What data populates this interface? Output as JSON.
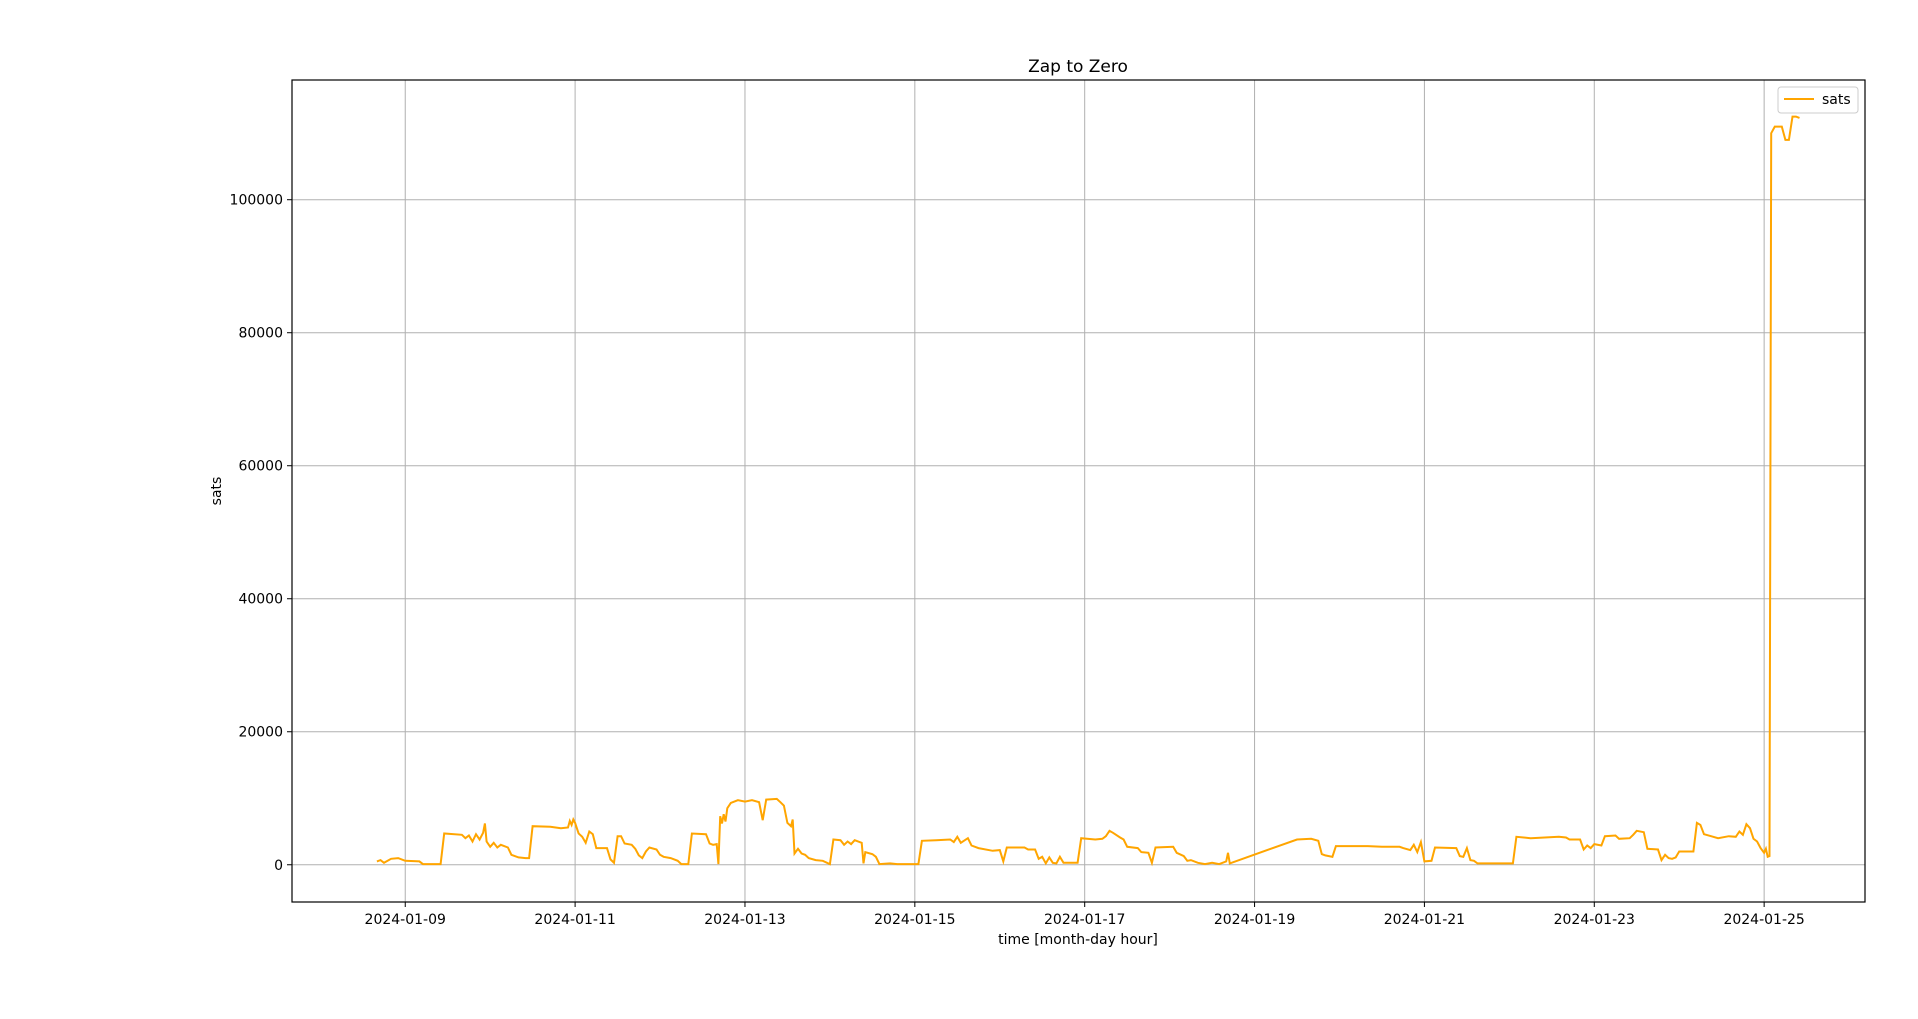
{
  "chart_data": {
    "type": "line",
    "title": "Zap to Zero",
    "xlabel": "time [month-day hour]",
    "ylabel": "sats",
    "x_ticks": [
      "2024-01-09",
      "2024-01-11",
      "2024-01-13",
      "2024-01-15",
      "2024-01-17",
      "2024-01-19",
      "2024-01-21",
      "2024-01-23",
      "2024-01-25"
    ],
    "y_ticks": [
      0,
      20000,
      40000,
      60000,
      80000,
      100000
    ],
    "xlim": [
      "2024-01-07T16:00",
      "2024-01-26T04:30"
    ],
    "ylim": [
      -5600,
      118000
    ],
    "grid": true,
    "legend_position": "top-right",
    "series": [
      {
        "name": "sats",
        "color": "#ffa500",
        "points": [
          [
            "2024-01-08T16:00",
            500
          ],
          [
            "2024-01-08T17:00",
            700
          ],
          [
            "2024-01-08T18:00",
            300
          ],
          [
            "2024-01-08T20:00",
            900
          ],
          [
            "2024-01-08T22:00",
            1000
          ],
          [
            "2024-01-09T00:00",
            600
          ],
          [
            "2024-01-09T04:00",
            500
          ],
          [
            "2024-01-09T05:00",
            100
          ],
          [
            "2024-01-09T10:00",
            100
          ],
          [
            "2024-01-09T11:00",
            4700
          ],
          [
            "2024-01-09T16:00",
            4500
          ],
          [
            "2024-01-09T17:00",
            4000
          ],
          [
            "2024-01-09T18:00",
            4400
          ],
          [
            "2024-01-09T19:00",
            3500
          ],
          [
            "2024-01-09T20:00",
            4600
          ],
          [
            "2024-01-09T21:00",
            3800
          ],
          [
            "2024-01-09T22:00",
            4800
          ],
          [
            "2024-01-09T22:30",
            6200
          ],
          [
            "2024-01-09T23:00",
            3500
          ],
          [
            "2024-01-10T00:00",
            2700
          ],
          [
            "2024-01-10T01:00",
            3300
          ],
          [
            "2024-01-10T02:00",
            2600
          ],
          [
            "2024-01-10T03:00",
            3000
          ],
          [
            "2024-01-10T05:00",
            2600
          ],
          [
            "2024-01-10T06:00",
            1500
          ],
          [
            "2024-01-10T08:00",
            1100
          ],
          [
            "2024-01-10T10:00",
            1000
          ],
          [
            "2024-01-10T11:00",
            1000
          ],
          [
            "2024-01-10T12:00",
            5800
          ],
          [
            "2024-01-10T17:00",
            5700
          ],
          [
            "2024-01-10T20:00",
            5500
          ],
          [
            "2024-01-10T22:00",
            5600
          ],
          [
            "2024-01-10T22:30",
            6600
          ],
          [
            "2024-01-10T23:00",
            6000
          ],
          [
            "2024-01-10T23:30",
            6800
          ],
          [
            "2024-01-11T00:00",
            6300
          ],
          [
            "2024-01-11T01:00",
            4700
          ],
          [
            "2024-01-11T02:00",
            4200
          ],
          [
            "2024-01-11T03:00",
            3300
          ],
          [
            "2024-01-11T04:00",
            5000
          ],
          [
            "2024-01-11T05:00",
            4600
          ],
          [
            "2024-01-11T06:00",
            2500
          ],
          [
            "2024-01-11T09:00",
            2500
          ],
          [
            "2024-01-11T10:00",
            800
          ],
          [
            "2024-01-11T11:00",
            300
          ],
          [
            "2024-01-11T12:00",
            4300
          ],
          [
            "2024-01-11T13:00",
            4300
          ],
          [
            "2024-01-11T14:00",
            3200
          ],
          [
            "2024-01-11T16:00",
            3000
          ],
          [
            "2024-01-11T17:00",
            2400
          ],
          [
            "2024-01-11T18:00",
            1400
          ],
          [
            "2024-01-11T19:00",
            1000
          ],
          [
            "2024-01-11T20:00",
            2000
          ],
          [
            "2024-01-11T21:00",
            2600
          ],
          [
            "2024-01-11T23:00",
            2300
          ],
          [
            "2024-01-12T00:00",
            1500
          ],
          [
            "2024-01-12T01:00",
            1200
          ],
          [
            "2024-01-12T03:00",
            1000
          ],
          [
            "2024-01-12T05:00",
            600
          ],
          [
            "2024-01-12T06:00",
            100
          ],
          [
            "2024-01-12T07:00",
            100
          ],
          [
            "2024-01-12T08:00",
            100
          ],
          [
            "2024-01-12T09:00",
            4700
          ],
          [
            "2024-01-12T13:00",
            4600
          ],
          [
            "2024-01-12T14:00",
            3200
          ],
          [
            "2024-01-12T15:00",
            3000
          ],
          [
            "2024-01-12T16:00",
            3100
          ],
          [
            "2024-01-12T16:30",
            100
          ],
          [
            "2024-01-12T17:00",
            7300
          ],
          [
            "2024-01-12T17:30",
            6200
          ],
          [
            "2024-01-12T18:00",
            7600
          ],
          [
            "2024-01-12T18:30",
            6500
          ],
          [
            "2024-01-12T19:00",
            8500
          ],
          [
            "2024-01-12T20:00",
            9300
          ],
          [
            "2024-01-12T22:00",
            9700
          ],
          [
            "2024-01-13T00:00",
            9500
          ],
          [
            "2024-01-13T02:00",
            9700
          ],
          [
            "2024-01-13T04:00",
            9400
          ],
          [
            "2024-01-13T05:00",
            6700
          ],
          [
            "2024-01-13T06:00",
            9800
          ],
          [
            "2024-01-13T09:00",
            9900
          ],
          [
            "2024-01-13T10:00",
            9400
          ],
          [
            "2024-01-13T11:00",
            8900
          ],
          [
            "2024-01-13T12:00",
            6300
          ],
          [
            "2024-01-13T13:00",
            5800
          ],
          [
            "2024-01-13T13:30",
            6800
          ],
          [
            "2024-01-13T14:00",
            1700
          ],
          [
            "2024-01-13T15:00",
            2400
          ],
          [
            "2024-01-13T16:00",
            1700
          ],
          [
            "2024-01-13T17:00",
            1500
          ],
          [
            "2024-01-13T18:00",
            1000
          ],
          [
            "2024-01-13T20:00",
            700
          ],
          [
            "2024-01-13T22:00",
            600
          ],
          [
            "2024-01-14T00:00",
            100
          ],
          [
            "2024-01-14T01:00",
            3800
          ],
          [
            "2024-01-14T03:00",
            3700
          ],
          [
            "2024-01-14T04:00",
            3000
          ],
          [
            "2024-01-14T05:00",
            3500
          ],
          [
            "2024-01-14T06:00",
            3100
          ],
          [
            "2024-01-14T07:00",
            3700
          ],
          [
            "2024-01-14T09:00",
            3300
          ],
          [
            "2024-01-14T09:30",
            200
          ],
          [
            "2024-01-14T10:00",
            1900
          ],
          [
            "2024-01-14T12:00",
            1600
          ],
          [
            "2024-01-14T13:00",
            1200
          ],
          [
            "2024-01-14T14:00",
            100
          ],
          [
            "2024-01-14T17:00",
            200
          ],
          [
            "2024-01-14T19:00",
            100
          ],
          [
            "2024-01-14T20:00",
            100
          ],
          [
            "2024-01-15T01:00",
            100
          ],
          [
            "2024-01-15T02:00",
            3600
          ],
          [
            "2024-01-15T06:00",
            3700
          ],
          [
            "2024-01-15T10:00",
            3800
          ],
          [
            "2024-01-15T11:00",
            3400
          ],
          [
            "2024-01-15T12:00",
            4200
          ],
          [
            "2024-01-15T13:00",
            3300
          ],
          [
            "2024-01-15T15:00",
            4000
          ],
          [
            "2024-01-15T16:00",
            2900
          ],
          [
            "2024-01-15T18:00",
            2500
          ],
          [
            "2024-01-15T22:00",
            2100
          ],
          [
            "2024-01-16T00:00",
            2200
          ],
          [
            "2024-01-16T01:00",
            500
          ],
          [
            "2024-01-16T02:00",
            2600
          ],
          [
            "2024-01-16T07:00",
            2600
          ],
          [
            "2024-01-16T08:00",
            2300
          ],
          [
            "2024-01-16T10:00",
            2300
          ],
          [
            "2024-01-16T11:00",
            900
          ],
          [
            "2024-01-16T12:00",
            1200
          ],
          [
            "2024-01-16T13:00",
            200
          ],
          [
            "2024-01-16T14:00",
            1100
          ],
          [
            "2024-01-16T15:00",
            300
          ],
          [
            "2024-01-16T16:00",
            200
          ],
          [
            "2024-01-16T17:00",
            1200
          ],
          [
            "2024-01-16T18:00",
            300
          ],
          [
            "2024-01-16T22:00",
            300
          ],
          [
            "2024-01-16T23:00",
            4000
          ],
          [
            "2024-01-17T03:00",
            3800
          ],
          [
            "2024-01-17T05:00",
            3900
          ],
          [
            "2024-01-17T06:00",
            4300
          ],
          [
            "2024-01-17T07:00",
            5100
          ],
          [
            "2024-01-17T08:00",
            4800
          ],
          [
            "2024-01-17T10:00",
            4100
          ],
          [
            "2024-01-17T11:00",
            3800
          ],
          [
            "2024-01-17T12:00",
            2700
          ],
          [
            "2024-01-17T15:00",
            2500
          ],
          [
            "2024-01-17T16:00",
            1900
          ],
          [
            "2024-01-17T18:00",
            1800
          ],
          [
            "2024-01-17T19:00",
            300
          ],
          [
            "2024-01-17T20:00",
            2600
          ],
          [
            "2024-01-18T01:00",
            2700
          ],
          [
            "2024-01-18T02:00",
            1800
          ],
          [
            "2024-01-18T04:00",
            1300
          ],
          [
            "2024-01-18T05:00",
            600
          ],
          [
            "2024-01-18T06:00",
            700
          ],
          [
            "2024-01-18T08:00",
            300
          ],
          [
            "2024-01-18T10:00",
            100
          ],
          [
            "2024-01-18T12:00",
            300
          ],
          [
            "2024-01-18T14:00",
            100
          ],
          [
            "2024-01-18T16:00",
            500
          ],
          [
            "2024-01-18T16:30",
            1800
          ],
          [
            "2024-01-18T17:00",
            200
          ],
          [
            "2024-01-19T12:00",
            3800
          ],
          [
            "2024-01-19T16:00",
            3900
          ],
          [
            "2024-01-19T18:00",
            3600
          ],
          [
            "2024-01-19T19:00",
            1600
          ],
          [
            "2024-01-19T20:00",
            1400
          ],
          [
            "2024-01-19T22:00",
            1200
          ],
          [
            "2024-01-19T23:00",
            2800
          ],
          [
            "2024-01-20T08:00",
            2800
          ],
          [
            "2024-01-20T12:00",
            2700
          ],
          [
            "2024-01-20T17:00",
            2700
          ],
          [
            "2024-01-20T18:00",
            2500
          ],
          [
            "2024-01-20T20:00",
            2200
          ],
          [
            "2024-01-20T21:00",
            3000
          ],
          [
            "2024-01-20T22:00",
            1900
          ],
          [
            "2024-01-20T23:00",
            3400
          ],
          [
            "2024-01-21T00:00",
            500
          ],
          [
            "2024-01-21T02:00",
            600
          ],
          [
            "2024-01-21T03:00",
            2600
          ],
          [
            "2024-01-21T09:00",
            2500
          ],
          [
            "2024-01-21T10:00",
            1300
          ],
          [
            "2024-01-21T11:00",
            1200
          ],
          [
            "2024-01-21T12:00",
            2500
          ],
          [
            "2024-01-21T13:00",
            700
          ],
          [
            "2024-01-21T14:00",
            600
          ],
          [
            "2024-01-21T15:00",
            200
          ],
          [
            "2024-01-21T18:00",
            200
          ],
          [
            "2024-01-22T01:00",
            200
          ],
          [
            "2024-01-22T02:00",
            4200
          ],
          [
            "2024-01-22T06:00",
            4000
          ],
          [
            "2024-01-22T10:00",
            4100
          ],
          [
            "2024-01-22T14:00",
            4200
          ],
          [
            "2024-01-22T16:00",
            4100
          ],
          [
            "2024-01-22T17:00",
            3800
          ],
          [
            "2024-01-22T20:00",
            3800
          ],
          [
            "2024-01-22T21:00",
            2300
          ],
          [
            "2024-01-22T22:00",
            2900
          ],
          [
            "2024-01-22T23:00",
            2500
          ],
          [
            "2024-01-23T00:00",
            3100
          ],
          [
            "2024-01-23T02:00",
            2900
          ],
          [
            "2024-01-23T03:00",
            4300
          ],
          [
            "2024-01-23T06:00",
            4400
          ],
          [
            "2024-01-23T07:00",
            3900
          ],
          [
            "2024-01-23T10:00",
            4000
          ],
          [
            "2024-01-23T11:00",
            4500
          ],
          [
            "2024-01-23T12:00",
            5100
          ],
          [
            "2024-01-23T14:00",
            4900
          ],
          [
            "2024-01-23T15:00",
            2400
          ],
          [
            "2024-01-23T18:00",
            2300
          ],
          [
            "2024-01-23T19:00",
            700
          ],
          [
            "2024-01-23T20:00",
            1500
          ],
          [
            "2024-01-23T21:00",
            1000
          ],
          [
            "2024-01-23T22:00",
            900
          ],
          [
            "2024-01-23T23:00",
            1100
          ],
          [
            "2024-01-24T00:00",
            2000
          ],
          [
            "2024-01-24T04:00",
            2000
          ],
          [
            "2024-01-24T05:00",
            6300
          ],
          [
            "2024-01-24T06:00",
            6000
          ],
          [
            "2024-01-24T07:00",
            4600
          ],
          [
            "2024-01-24T09:00",
            4300
          ],
          [
            "2024-01-24T11:00",
            4000
          ],
          [
            "2024-01-24T14:00",
            4300
          ],
          [
            "2024-01-24T16:00",
            4200
          ],
          [
            "2024-01-24T17:00",
            5000
          ],
          [
            "2024-01-24T18:00",
            4500
          ],
          [
            "2024-01-24T19:00",
            6100
          ],
          [
            "2024-01-24T20:00",
            5500
          ],
          [
            "2024-01-24T21:00",
            3900
          ],
          [
            "2024-01-24T22:00",
            3500
          ],
          [
            "2024-01-24T23:00",
            2500
          ],
          [
            "2024-01-25T00:00",
            1800
          ],
          [
            "2024-01-25T00:30",
            2400
          ],
          [
            "2024-01-25T01:00",
            1200
          ],
          [
            "2024-01-25T01:30",
            1300
          ],
          [
            "2024-01-25T02:00",
            110000
          ],
          [
            "2024-01-25T03:00",
            111000
          ],
          [
            "2024-01-25T05:00",
            111000
          ],
          [
            "2024-01-25T06:00",
            109000
          ],
          [
            "2024-01-25T07:00",
            109000
          ],
          [
            "2024-01-25T08:00",
            112500
          ],
          [
            "2024-01-25T09:00",
            112500
          ],
          [
            "2024-01-25T10:00",
            112300
          ]
        ]
      }
    ]
  }
}
